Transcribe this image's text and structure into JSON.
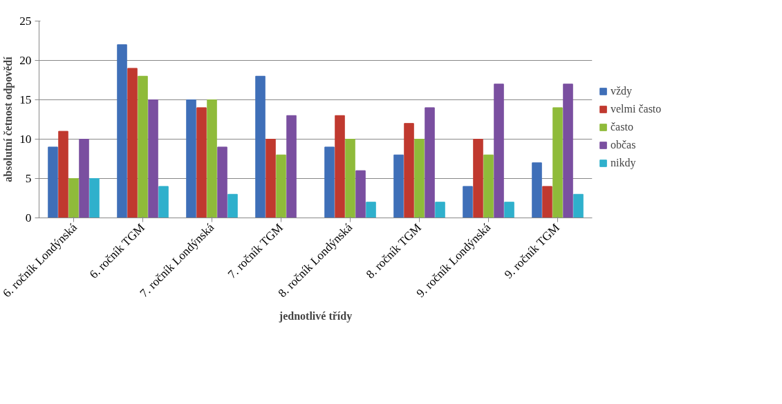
{
  "chart_data": {
    "type": "bar",
    "xlabel": "jednotlivé třídy",
    "ylabel": "absolutní četnost odpovědí",
    "categories": [
      "6. ročník Londýnská",
      "6. ročník TGM",
      "7. ročník Londýnská",
      "7. ročník TGM",
      "8. ročník Londýnská",
      "8. ročník TGM",
      "9. ročník Londýnská",
      "9. ročník TGM"
    ],
    "series": [
      {
        "name": "vždy",
        "color": "#3f6fb8",
        "values": [
          9,
          22,
          15,
          18,
          9,
          8,
          4,
          7
        ]
      },
      {
        "name": "velmi často",
        "color": "#c0392f",
        "values": [
          11,
          19,
          14,
          10,
          13,
          12,
          10,
          4
        ]
      },
      {
        "name": "často",
        "color": "#8fbb3a",
        "values": [
          5,
          18,
          15,
          8,
          10,
          10,
          8,
          14
        ]
      },
      {
        "name": "občas",
        "color": "#7a4fa0",
        "values": [
          10,
          15,
          9,
          13,
          6,
          14,
          17,
          17
        ]
      },
      {
        "name": "nikdy",
        "color": "#2fb0cc",
        "values": [
          5,
          4,
          3,
          0,
          2,
          2,
          2,
          3
        ]
      }
    ],
    "ylim": [
      0,
      25
    ],
    "yticks": [
      0,
      5,
      10,
      15,
      20,
      25
    ],
    "grid": "y",
    "legend": "right"
  }
}
